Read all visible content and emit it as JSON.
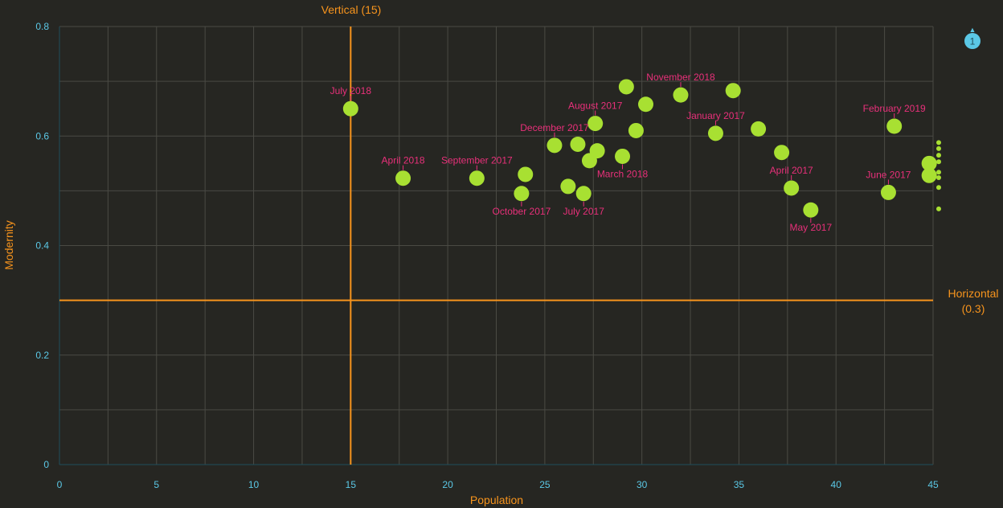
{
  "colors": {
    "background": "#262622",
    "grid": "#4a4a44",
    "axis_line": "#1f4e5c",
    "tick_text": "#5bc8e6",
    "axis_title": "#f7941d",
    "ref_line": "#f7941d",
    "point": "#a8e032",
    "label": "#e8307a",
    "scroll_badge": "#5bc8e6",
    "scroll_badge_text": "#1f4e5c"
  },
  "chart_data": {
    "type": "scatter",
    "title": "",
    "xlabel": "Population",
    "ylabel": "Modernity",
    "xlim": [
      0,
      45
    ],
    "ylim": [
      0,
      0.8
    ],
    "x_ticks": [
      0,
      5,
      10,
      15,
      20,
      25,
      30,
      35,
      40,
      45
    ],
    "y_ticks": [
      0,
      0.2,
      0.4,
      0.6,
      0.8
    ],
    "grid": true,
    "reference_lines": {
      "vertical": {
        "label": "Vertical (15)",
        "value": 15
      },
      "horizontal": {
        "label_line1": "Horizontal",
        "label_line2": "(0.3)",
        "value": 0.3
      }
    },
    "points": [
      {
        "x": 15.0,
        "y": 0.65,
        "label": "July 2018",
        "label_pos": "above"
      },
      {
        "x": 17.7,
        "y": 0.523,
        "label": "April 2018",
        "label_pos": "above"
      },
      {
        "x": 21.5,
        "y": 0.523,
        "label": "September 2017",
        "label_pos": "above"
      },
      {
        "x": 24.0,
        "y": 0.53,
        "label": "",
        "label_pos": "none"
      },
      {
        "x": 23.8,
        "y": 0.495,
        "label": "October 2017",
        "label_pos": "below"
      },
      {
        "x": 25.5,
        "y": 0.583,
        "label": "December 2017",
        "label_pos": "above"
      },
      {
        "x": 26.2,
        "y": 0.508,
        "label": "",
        "label_pos": "none"
      },
      {
        "x": 26.7,
        "y": 0.585,
        "label": "",
        "label_pos": "none"
      },
      {
        "x": 27.0,
        "y": 0.495,
        "label": "July 2017",
        "label_pos": "below"
      },
      {
        "x": 27.3,
        "y": 0.555,
        "label": "",
        "label_pos": "none"
      },
      {
        "x": 27.6,
        "y": 0.623,
        "label": "August 2017",
        "label_pos": "above"
      },
      {
        "x": 27.7,
        "y": 0.573,
        "label": "",
        "label_pos": "none"
      },
      {
        "x": 29.0,
        "y": 0.563,
        "label": "March 2018",
        "label_pos": "below"
      },
      {
        "x": 29.2,
        "y": 0.69,
        "label": "",
        "label_pos": "none"
      },
      {
        "x": 29.7,
        "y": 0.61,
        "label": "",
        "label_pos": "none"
      },
      {
        "x": 30.2,
        "y": 0.658,
        "label": "",
        "label_pos": "none"
      },
      {
        "x": 32.0,
        "y": 0.675,
        "label": "November 2018",
        "label_pos": "above"
      },
      {
        "x": 33.8,
        "y": 0.605,
        "label": "January 2017",
        "label_pos": "above"
      },
      {
        "x": 34.7,
        "y": 0.683,
        "label": "",
        "label_pos": "none"
      },
      {
        "x": 36.0,
        "y": 0.613,
        "label": "",
        "label_pos": "none"
      },
      {
        "x": 37.2,
        "y": 0.57,
        "label": "",
        "label_pos": "none"
      },
      {
        "x": 37.7,
        "y": 0.505,
        "label": "April 2017",
        "label_pos": "above"
      },
      {
        "x": 38.7,
        "y": 0.465,
        "label": "May 2017",
        "label_pos": "below"
      },
      {
        "x": 42.7,
        "y": 0.497,
        "label": "June 2017",
        "label_pos": "above"
      },
      {
        "x": 43.0,
        "y": 0.618,
        "label": "February 2019",
        "label_pos": "above"
      },
      {
        "x": 44.8,
        "y": 0.55,
        "label": "",
        "label_pos": "none"
      },
      {
        "x": 44.8,
        "y": 0.528,
        "label": "",
        "label_pos": "none"
      }
    ],
    "offscale_marker_y": [
      0.588,
      0.577,
      0.565,
      0.553,
      0.534,
      0.524,
      0.506,
      0.467
    ]
  },
  "scroll_indicator": {
    "count": "1",
    "arrow": "▲"
  }
}
